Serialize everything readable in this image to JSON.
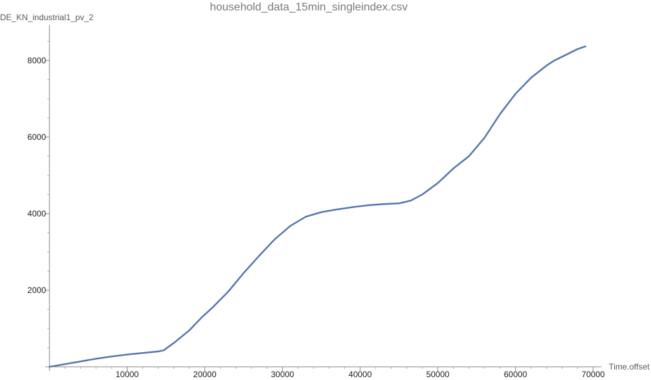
{
  "chart_data": {
    "type": "line",
    "title": "household_data_15min_singleindex.csv",
    "xlabel": "Time.offset",
    "ylabel": "DE_KN_industrial1_pv_2",
    "xlim": [
      0,
      70000
    ],
    "ylim": [
      0,
      8700
    ],
    "x_ticks": [
      {
        "value": 10000,
        "label": "10000"
      },
      {
        "value": 20000,
        "label": "20000"
      },
      {
        "value": 30000,
        "label": "30000"
      },
      {
        "value": 40000,
        "label": "40000"
      },
      {
        "value": 50000,
        "label": "50000"
      },
      {
        "value": 60000,
        "label": "60000"
      },
      {
        "value": 70000,
        "label": "70000"
      }
    ],
    "y_ticks": [
      {
        "value": 2000,
        "label": "2000"
      },
      {
        "value": 4000,
        "label": "4000"
      },
      {
        "value": 6000,
        "label": "6000"
      },
      {
        "value": 8000,
        "label": "8000"
      }
    ],
    "grid": false,
    "series": [
      {
        "color": "#5477ad",
        "x": [
          0,
          2000,
          4000,
          6000,
          8000,
          10000,
          12000,
          14000,
          14700,
          16000,
          18000,
          19500,
          21000,
          23000,
          25000,
          27000,
          29000,
          31000,
          33000,
          35000,
          37000,
          39000,
          41000,
          43000,
          45000,
          46500,
          48000,
          50000,
          52000,
          54000,
          56000,
          58000,
          60000,
          62000,
          64000,
          65000,
          66000,
          67000,
          68000,
          69000
        ],
        "y": [
          0,
          70,
          140,
          210,
          270,
          320,
          360,
          400,
          430,
          620,
          950,
          1270,
          1550,
          1960,
          2450,
          2900,
          3330,
          3680,
          3920,
          4040,
          4110,
          4170,
          4220,
          4250,
          4270,
          4340,
          4500,
          4800,
          5180,
          5500,
          5980,
          6600,
          7130,
          7550,
          7870,
          8000,
          8100,
          8200,
          8300,
          8370
        ]
      }
    ]
  }
}
